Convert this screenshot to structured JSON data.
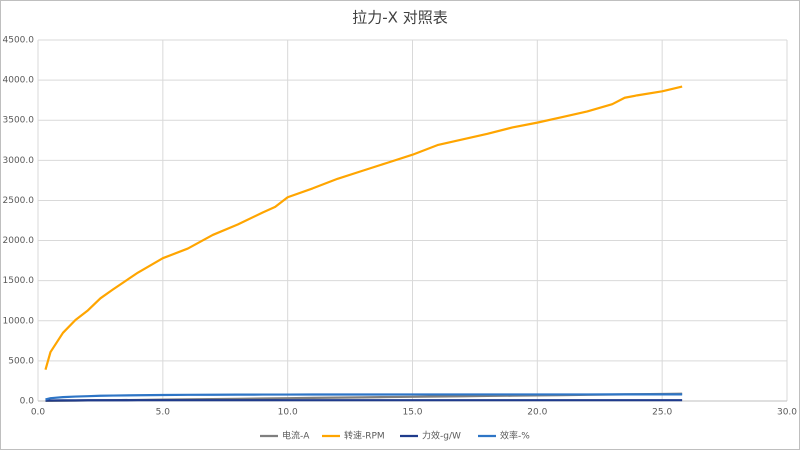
{
  "chart_data": {
    "type": "line",
    "title": "拉力-X 对照表",
    "x": [
      0.3,
      0.5,
      1,
      1.5,
      2,
      2.5,
      3,
      4,
      5,
      6,
      7,
      8,
      9,
      9.5,
      10,
      11,
      12,
      13,
      14,
      15,
      16,
      17,
      18,
      19,
      20,
      21,
      22,
      23,
      23.5,
      24,
      25,
      25.8
    ],
    "series": [
      {
        "name": "电流-A",
        "color": "#7f7f7f",
        "values": [
          1,
          2,
          3.5,
          5,
          7,
          8.5,
          10,
          13.5,
          17,
          20.5,
          24,
          27.5,
          31,
          33,
          35,
          38.5,
          42,
          45.5,
          49,
          52.5,
          56,
          59.5,
          63,
          66.5,
          70,
          73.5,
          77,
          80.5,
          82.5,
          84,
          88,
          91
        ]
      },
      {
        "name": "转速-RPM",
        "color": "#ffa500",
        "values": [
          390,
          610,
          850,
          1010,
          1130,
          1280,
          1390,
          1600,
          1780,
          1900,
          2070,
          2200,
          2350,
          2420,
          2540,
          2650,
          2770,
          2870,
          2970,
          3070,
          3190,
          3260,
          3330,
          3410,
          3470,
          3540,
          3610,
          3700,
          3780,
          3810,
          3860,
          3920
        ]
      },
      {
        "name": "力效-g/W",
        "color": "#1f3b8c",
        "values": [
          6,
          7,
          8,
          8,
          9,
          9,
          9,
          10,
          10,
          10,
          10,
          10,
          10,
          10,
          10,
          10,
          10,
          10,
          10,
          10,
          10,
          10,
          10,
          10,
          10,
          10,
          10,
          10,
          10,
          10,
          10,
          10
        ]
      },
      {
        "name": "效率-%",
        "color": "#2e75c6",
        "values": [
          20,
          35,
          48,
          55,
          60,
          65,
          68,
          72,
          75,
          77,
          78,
          79,
          80,
          80,
          80,
          81,
          81,
          81,
          81,
          82,
          82,
          82,
          82,
          82,
          82,
          82,
          82,
          83,
          83,
          83,
          83,
          83
        ]
      }
    ],
    "xlim": [
      0,
      30
    ],
    "xticks": [
      {
        "value": 0,
        "label": "0.0"
      },
      {
        "value": 5,
        "label": "5.0"
      },
      {
        "value": 10,
        "label": "10.0"
      },
      {
        "value": 15,
        "label": "15.0"
      },
      {
        "value": 20,
        "label": "20.0"
      },
      {
        "value": 25,
        "label": "25.0"
      },
      {
        "value": 30,
        "label": "30.0"
      }
    ],
    "ylim": [
      0,
      4500
    ],
    "yticks": [
      {
        "value": 0,
        "label": "0.0"
      },
      {
        "value": 500,
        "label": "500.0"
      },
      {
        "value": 1000,
        "label": "1000.0"
      },
      {
        "value": 1500,
        "label": "1500.0"
      },
      {
        "value": 2000,
        "label": "2000.0"
      },
      {
        "value": 2500,
        "label": "2500.0"
      },
      {
        "value": 3000,
        "label": "3000.0"
      },
      {
        "value": 3500,
        "label": "3500.0"
      },
      {
        "value": 4000,
        "label": "4000.0"
      },
      {
        "value": 4500,
        "label": "4500.0"
      }
    ],
    "grid": true,
    "legend": "bottom"
  }
}
